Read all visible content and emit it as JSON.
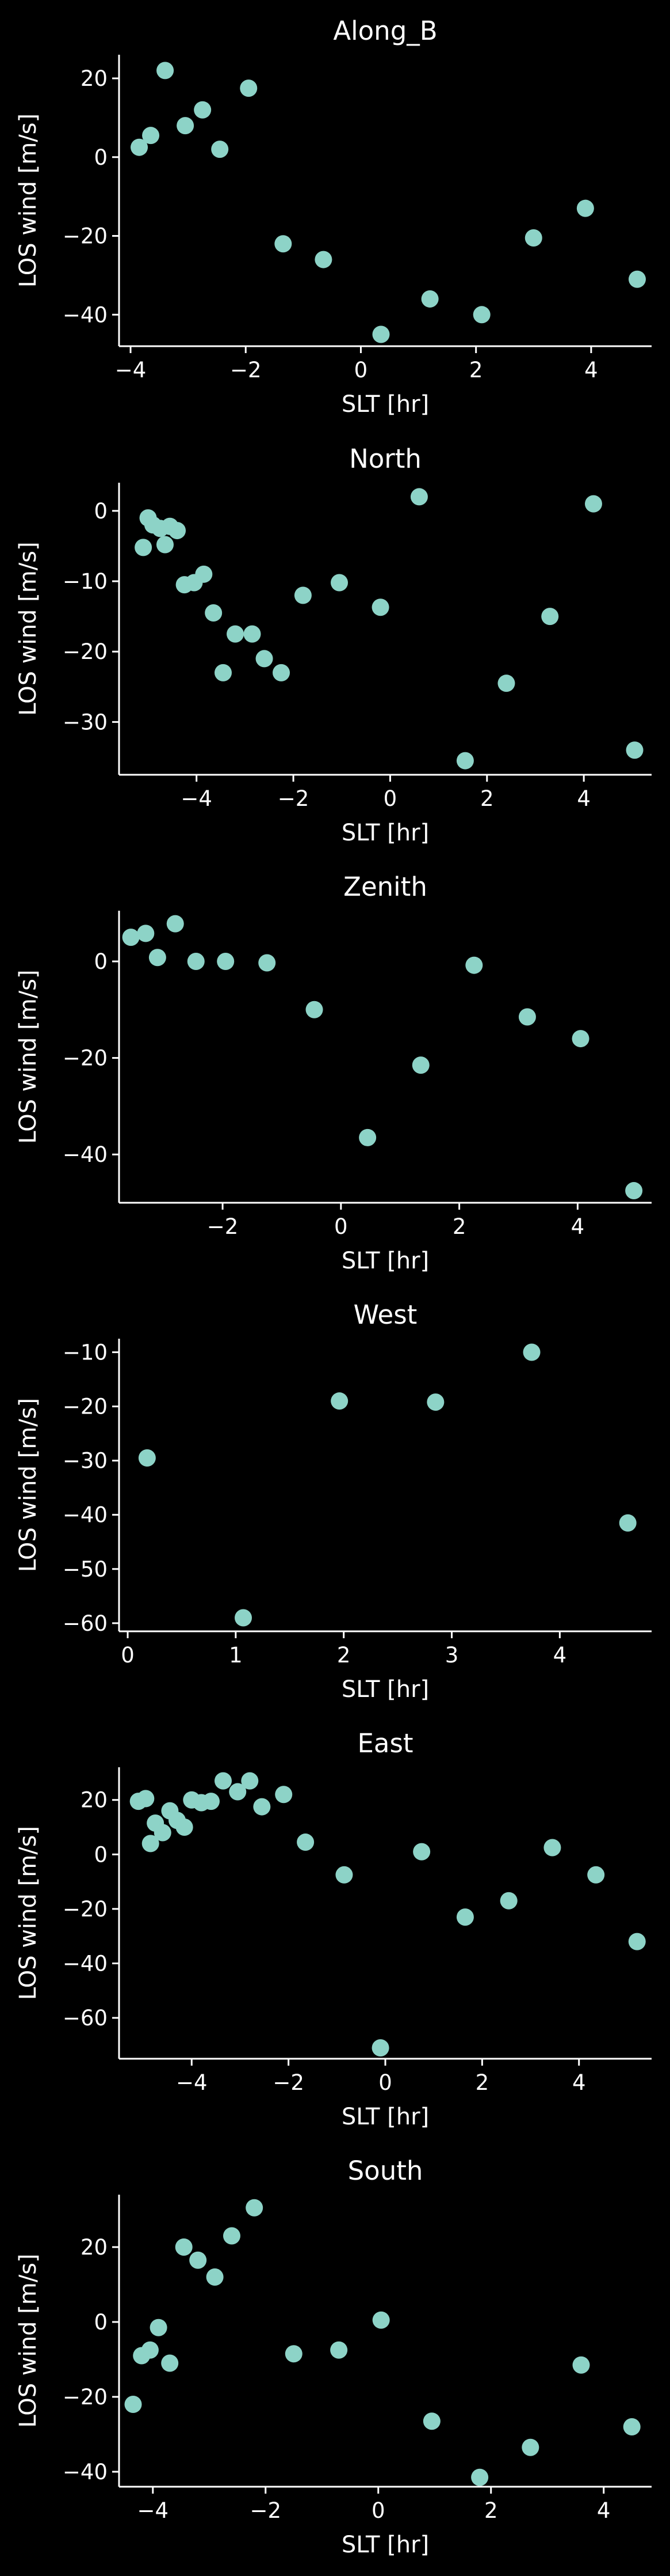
{
  "colors": {
    "background": "#000000",
    "axes": "#ffffff",
    "text": "#ffffff",
    "marker": "#8dd3c7"
  },
  "chart_data": [
    {
      "type": "scatter",
      "title": "Along_B",
      "xlabel": "SLT [hr]",
      "ylabel": "LOS wind [m/s]",
      "xlim": [
        -4.2,
        5.05
      ],
      "ylim": [
        -48,
        26
      ],
      "xticks": [
        -4,
        -2,
        0,
        2,
        4
      ],
      "yticks": [
        -40,
        -20,
        0,
        20
      ],
      "xtick_labels": [
        "−4",
        "−2",
        "0",
        "2",
        "4"
      ],
      "ytick_labels": [
        "−40",
        "−20",
        "0",
        "20"
      ],
      "x": [
        -3.85,
        -3.65,
        -3.4,
        -3.05,
        -2.75,
        -2.45,
        -1.95,
        -1.35,
        -0.65,
        0.35,
        1.2,
        2.1,
        3.0,
        3.9,
        4.8
      ],
      "y": [
        2.5,
        5.5,
        22,
        8,
        12,
        2,
        17.5,
        -22,
        -26,
        -45,
        -36,
        -40,
        -20.5,
        -13,
        -31
      ]
    },
    {
      "type": "scatter",
      "title": "North",
      "xlabel": "SLT [hr]",
      "ylabel": "LOS wind [m/s]",
      "xlim": [
        -5.6,
        5.4
      ],
      "ylim": [
        -37.5,
        4
      ],
      "xticks": [
        -4,
        -2,
        0,
        2,
        4
      ],
      "yticks": [
        -30,
        -20,
        -10,
        0
      ],
      "xtick_labels": [
        "−4",
        "−2",
        "0",
        "2",
        "4"
      ],
      "ytick_labels": [
        "−30",
        "−20",
        "−10",
        "0"
      ],
      "x": [
        -5.1,
        -5.0,
        -4.9,
        -4.75,
        -4.65,
        -4.55,
        -4.4,
        -4.25,
        -4.05,
        -3.85,
        -3.65,
        -3.45,
        -3.2,
        -2.85,
        -2.6,
        -2.25,
        -1.8,
        -1.05,
        -0.2,
        0.6,
        1.55,
        2.4,
        3.3,
        4.2,
        5.05
      ],
      "y": [
        -5.2,
        -1.0,
        -2.0,
        -2.5,
        -4.8,
        -2.2,
        -2.8,
        -10.5,
        -10.2,
        -9.0,
        -14.5,
        -23.0,
        -17.5,
        -17.5,
        -21.0,
        -23.0,
        -12.0,
        -10.2,
        -13.7,
        2.0,
        -35.5,
        -24.5,
        -15.0,
        1.0,
        -34.0
      ]
    },
    {
      "type": "scatter",
      "title": "Zenith",
      "xlabel": "SLT [hr]",
      "ylabel": "LOS wind [m/s]",
      "xlim": [
        -3.75,
        5.25
      ],
      "ylim": [
        -50,
        10.5
      ],
      "xticks": [
        -2,
        0,
        2,
        4
      ],
      "yticks": [
        -40,
        -20,
        0
      ],
      "xtick_labels": [
        "−2",
        "0",
        "2",
        "4"
      ],
      "ytick_labels": [
        "−40",
        "−20",
        "0"
      ],
      "x": [
        -3.55,
        -3.3,
        -3.1,
        -2.8,
        -2.45,
        -1.95,
        -1.25,
        -0.45,
        0.45,
        1.35,
        2.25,
        3.15,
        4.05,
        4.95
      ],
      "y": [
        5.0,
        5.8,
        0.8,
        7.8,
        0.0,
        0.0,
        -0.3,
        -10.0,
        -36.5,
        -21.5,
        -0.8,
        -11.5,
        -16.0,
        -47.5
      ]
    },
    {
      "type": "scatter",
      "title": "West",
      "xlabel": "SLT [hr]",
      "ylabel": "LOS wind [m/s]",
      "xlim": [
        -0.08,
        4.85
      ],
      "ylim": [
        -61.5,
        -7.5
      ],
      "xticks": [
        0,
        1,
        2,
        3,
        4
      ],
      "yticks": [
        -60,
        -50,
        -40,
        -30,
        -20,
        -10
      ],
      "xtick_labels": [
        "0",
        "1",
        "2",
        "3",
        "4"
      ],
      "ytick_labels": [
        "−60",
        "−50",
        "−40",
        "−30",
        "−20",
        "−10"
      ],
      "x": [
        0.18,
        1.07,
        1.96,
        2.85,
        3.74,
        4.63
      ],
      "y": [
        -29.5,
        -59.0,
        -19.0,
        -19.2,
        -10.0,
        -41.5
      ]
    },
    {
      "type": "scatter",
      "title": "East",
      "xlabel": "SLT [hr]",
      "ylabel": "LOS wind [m/s]",
      "xlim": [
        -5.5,
        5.5
      ],
      "ylim": [
        -75,
        32
      ],
      "xticks": [
        -4,
        -2,
        0,
        2,
        4
      ],
      "yticks": [
        -60,
        -40,
        -20,
        0,
        20
      ],
      "xtick_labels": [
        "−4",
        "−2",
        "0",
        "2",
        "4"
      ],
      "ytick_labels": [
        "−60",
        "−40",
        "−20",
        "0",
        "20"
      ],
      "x": [
        -5.1,
        -4.95,
        -4.85,
        -4.75,
        -4.6,
        -4.45,
        -4.3,
        -4.15,
        -4.0,
        -3.8,
        -3.6,
        -3.35,
        -3.05,
        -2.8,
        -2.55,
        -2.1,
        -1.65,
        -0.85,
        -0.1,
        0.75,
        1.65,
        2.55,
        3.45,
        4.35,
        5.2
      ],
      "y": [
        19.5,
        20.5,
        4.0,
        11.5,
        8.0,
        16.0,
        12.5,
        10.0,
        20.0,
        19.0,
        19.5,
        27.0,
        23.0,
        27.0,
        17.5,
        22.0,
        4.5,
        -7.5,
        -71.0,
        1.0,
        -23.0,
        -17.0,
        2.5,
        -7.5,
        -32.0
      ]
    },
    {
      "type": "scatter",
      "title": "South",
      "xlabel": "SLT [hr]",
      "ylabel": "LOS wind [m/s]",
      "xlim": [
        -4.6,
        4.85
      ],
      "ylim": [
        -44,
        34
      ],
      "xticks": [
        -4,
        -2,
        0,
        2,
        4
      ],
      "yticks": [
        -40,
        -20,
        0,
        20
      ],
      "xtick_labels": [
        "−4",
        "−2",
        "0",
        "2",
        "4"
      ],
      "ytick_labels": [
        "−40",
        "−20",
        "0",
        "20"
      ],
      "x": [
        -4.35,
        -4.2,
        -4.05,
        -3.9,
        -3.7,
        -3.45,
        -3.2,
        -2.9,
        -2.6,
        -2.2,
        -1.5,
        -0.7,
        0.05,
        0.95,
        1.8,
        2.7,
        3.6,
        4.5
      ],
      "y": [
        -22.0,
        -9.0,
        -7.5,
        -1.5,
        -11.0,
        20.0,
        16.5,
        12.0,
        23.0,
        30.5,
        -8.5,
        -7.5,
        0.5,
        -26.5,
        -41.5,
        -33.5,
        -11.5,
        -28.0
      ]
    }
  ]
}
